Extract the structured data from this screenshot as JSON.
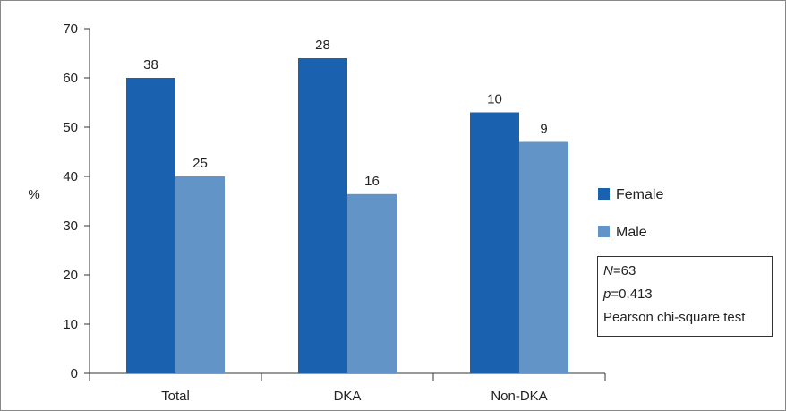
{
  "chart_data": {
    "type": "bar",
    "ylabel": "%",
    "ylim": [
      0,
      70
    ],
    "y_ticks": [
      "0",
      "10",
      "20",
      "30",
      "40",
      "50",
      "60",
      "70"
    ],
    "categories": [
      "Total",
      "DKA",
      "Non-DKA"
    ],
    "series": [
      {
        "name": "Female",
        "color": "#1a62b0",
        "values": [
          60,
          64,
          53
        ],
        "labels": [
          "38",
          "28",
          "10"
        ]
      },
      {
        "name": "Male",
        "color": "#6394c8",
        "values": [
          40,
          36.4,
          47
        ],
        "labels": [
          "25",
          "16",
          "9"
        ]
      }
    ],
    "stats": {
      "n_var": "N",
      "n_value": "=63",
      "p_var": "p",
      "p_value": "=0.413",
      "test": "Pearson chi-square test"
    },
    "grid": false,
    "legend_position": "right"
  }
}
